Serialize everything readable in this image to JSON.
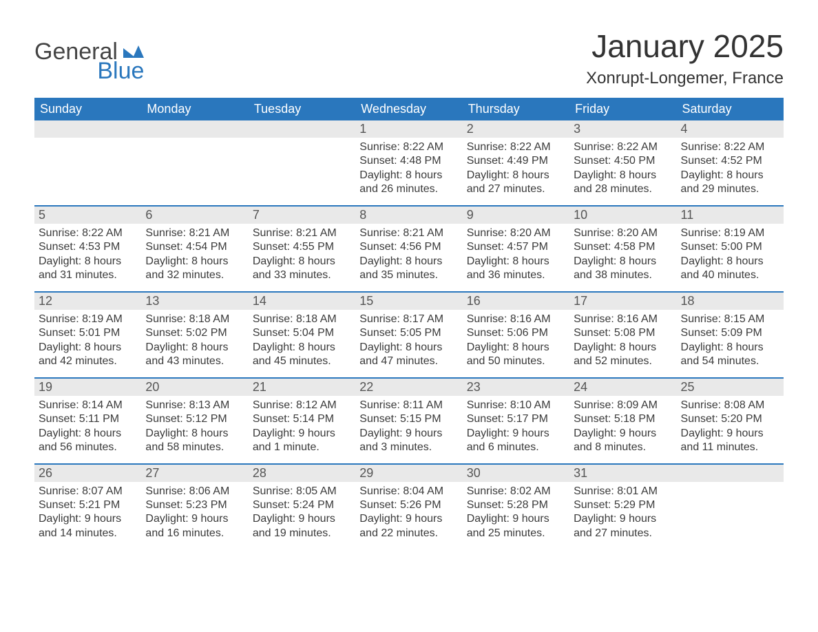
{
  "logo": {
    "text_general": "General",
    "text_blue": "Blue",
    "mark_color": "#2a77bd"
  },
  "title": "January 2025",
  "subtitle": "Xonrupt-Longemer, France",
  "colors": {
    "header_bg": "#2a77bd",
    "header_text": "#ffffff",
    "daynum_bg": "#e9e9e9",
    "week_border": "#2a77bd",
    "body_text": "#3a3a3a",
    "page_bg": "#ffffff"
  },
  "typography": {
    "title_fontsize": 46,
    "subtitle_fontsize": 24,
    "dow_fontsize": 18,
    "daynum_fontsize": 18,
    "body_fontsize": 16,
    "font_family": "Arial"
  },
  "days_of_week": [
    "Sunday",
    "Monday",
    "Tuesday",
    "Wednesday",
    "Thursday",
    "Friday",
    "Saturday"
  ],
  "weeks": [
    [
      {
        "empty": true
      },
      {
        "empty": true
      },
      {
        "empty": true
      },
      {
        "num": "1",
        "sunrise": "Sunrise: 8:22 AM",
        "sunset": "Sunset: 4:48 PM",
        "daylight": "Daylight: 8 hours and 26 minutes."
      },
      {
        "num": "2",
        "sunrise": "Sunrise: 8:22 AM",
        "sunset": "Sunset: 4:49 PM",
        "daylight": "Daylight: 8 hours and 27 minutes."
      },
      {
        "num": "3",
        "sunrise": "Sunrise: 8:22 AM",
        "sunset": "Sunset: 4:50 PM",
        "daylight": "Daylight: 8 hours and 28 minutes."
      },
      {
        "num": "4",
        "sunrise": "Sunrise: 8:22 AM",
        "sunset": "Sunset: 4:52 PM",
        "daylight": "Daylight: 8 hours and 29 minutes."
      }
    ],
    [
      {
        "num": "5",
        "sunrise": "Sunrise: 8:22 AM",
        "sunset": "Sunset: 4:53 PM",
        "daylight": "Daylight: 8 hours and 31 minutes."
      },
      {
        "num": "6",
        "sunrise": "Sunrise: 8:21 AM",
        "sunset": "Sunset: 4:54 PM",
        "daylight": "Daylight: 8 hours and 32 minutes."
      },
      {
        "num": "7",
        "sunrise": "Sunrise: 8:21 AM",
        "sunset": "Sunset: 4:55 PM",
        "daylight": "Daylight: 8 hours and 33 minutes."
      },
      {
        "num": "8",
        "sunrise": "Sunrise: 8:21 AM",
        "sunset": "Sunset: 4:56 PM",
        "daylight": "Daylight: 8 hours and 35 minutes."
      },
      {
        "num": "9",
        "sunrise": "Sunrise: 8:20 AM",
        "sunset": "Sunset: 4:57 PM",
        "daylight": "Daylight: 8 hours and 36 minutes."
      },
      {
        "num": "10",
        "sunrise": "Sunrise: 8:20 AM",
        "sunset": "Sunset: 4:58 PM",
        "daylight": "Daylight: 8 hours and 38 minutes."
      },
      {
        "num": "11",
        "sunrise": "Sunrise: 8:19 AM",
        "sunset": "Sunset: 5:00 PM",
        "daylight": "Daylight: 8 hours and 40 minutes."
      }
    ],
    [
      {
        "num": "12",
        "sunrise": "Sunrise: 8:19 AM",
        "sunset": "Sunset: 5:01 PM",
        "daylight": "Daylight: 8 hours and 42 minutes."
      },
      {
        "num": "13",
        "sunrise": "Sunrise: 8:18 AM",
        "sunset": "Sunset: 5:02 PM",
        "daylight": "Daylight: 8 hours and 43 minutes."
      },
      {
        "num": "14",
        "sunrise": "Sunrise: 8:18 AM",
        "sunset": "Sunset: 5:04 PM",
        "daylight": "Daylight: 8 hours and 45 minutes."
      },
      {
        "num": "15",
        "sunrise": "Sunrise: 8:17 AM",
        "sunset": "Sunset: 5:05 PM",
        "daylight": "Daylight: 8 hours and 47 minutes."
      },
      {
        "num": "16",
        "sunrise": "Sunrise: 8:16 AM",
        "sunset": "Sunset: 5:06 PM",
        "daylight": "Daylight: 8 hours and 50 minutes."
      },
      {
        "num": "17",
        "sunrise": "Sunrise: 8:16 AM",
        "sunset": "Sunset: 5:08 PM",
        "daylight": "Daylight: 8 hours and 52 minutes."
      },
      {
        "num": "18",
        "sunrise": "Sunrise: 8:15 AM",
        "sunset": "Sunset: 5:09 PM",
        "daylight": "Daylight: 8 hours and 54 minutes."
      }
    ],
    [
      {
        "num": "19",
        "sunrise": "Sunrise: 8:14 AM",
        "sunset": "Sunset: 5:11 PM",
        "daylight": "Daylight: 8 hours and 56 minutes."
      },
      {
        "num": "20",
        "sunrise": "Sunrise: 8:13 AM",
        "sunset": "Sunset: 5:12 PM",
        "daylight": "Daylight: 8 hours and 58 minutes."
      },
      {
        "num": "21",
        "sunrise": "Sunrise: 8:12 AM",
        "sunset": "Sunset: 5:14 PM",
        "daylight": "Daylight: 9 hours and 1 minute."
      },
      {
        "num": "22",
        "sunrise": "Sunrise: 8:11 AM",
        "sunset": "Sunset: 5:15 PM",
        "daylight": "Daylight: 9 hours and 3 minutes."
      },
      {
        "num": "23",
        "sunrise": "Sunrise: 8:10 AM",
        "sunset": "Sunset: 5:17 PM",
        "daylight": "Daylight: 9 hours and 6 minutes."
      },
      {
        "num": "24",
        "sunrise": "Sunrise: 8:09 AM",
        "sunset": "Sunset: 5:18 PM",
        "daylight": "Daylight: 9 hours and 8 minutes."
      },
      {
        "num": "25",
        "sunrise": "Sunrise: 8:08 AM",
        "sunset": "Sunset: 5:20 PM",
        "daylight": "Daylight: 9 hours and 11 minutes."
      }
    ],
    [
      {
        "num": "26",
        "sunrise": "Sunrise: 8:07 AM",
        "sunset": "Sunset: 5:21 PM",
        "daylight": "Daylight: 9 hours and 14 minutes."
      },
      {
        "num": "27",
        "sunrise": "Sunrise: 8:06 AM",
        "sunset": "Sunset: 5:23 PM",
        "daylight": "Daylight: 9 hours and 16 minutes."
      },
      {
        "num": "28",
        "sunrise": "Sunrise: 8:05 AM",
        "sunset": "Sunset: 5:24 PM",
        "daylight": "Daylight: 9 hours and 19 minutes."
      },
      {
        "num": "29",
        "sunrise": "Sunrise: 8:04 AM",
        "sunset": "Sunset: 5:26 PM",
        "daylight": "Daylight: 9 hours and 22 minutes."
      },
      {
        "num": "30",
        "sunrise": "Sunrise: 8:02 AM",
        "sunset": "Sunset: 5:28 PM",
        "daylight": "Daylight: 9 hours and 25 minutes."
      },
      {
        "num": "31",
        "sunrise": "Sunrise: 8:01 AM",
        "sunset": "Sunset: 5:29 PM",
        "daylight": "Daylight: 9 hours and 27 minutes."
      },
      {
        "empty": true
      }
    ]
  ]
}
